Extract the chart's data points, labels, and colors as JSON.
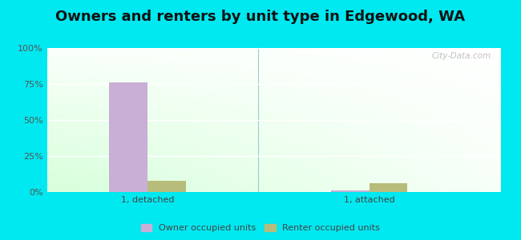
{
  "title": "Owners and renters by unit type in Edgewood, WA",
  "categories": [
    "1, detached",
    "1, attached"
  ],
  "owner_values": [
    76,
    1
  ],
  "renter_values": [
    8,
    6
  ],
  "owner_color": "#c9aed6",
  "renter_color": "#b8bc7a",
  "ylim": [
    0,
    100
  ],
  "yticks": [
    0,
    25,
    50,
    75,
    100
  ],
  "ytick_labels": [
    "0%",
    "25%",
    "50%",
    "75%",
    "100%"
  ],
  "legend_owner": "Owner occupied units",
  "legend_renter": "Renter occupied units",
  "bar_width": 0.38,
  "group_positions": [
    1.0,
    3.2
  ],
  "outer_bg": "#00e8f0",
  "title_fontsize": 13,
  "watermark": "City-Data.com"
}
